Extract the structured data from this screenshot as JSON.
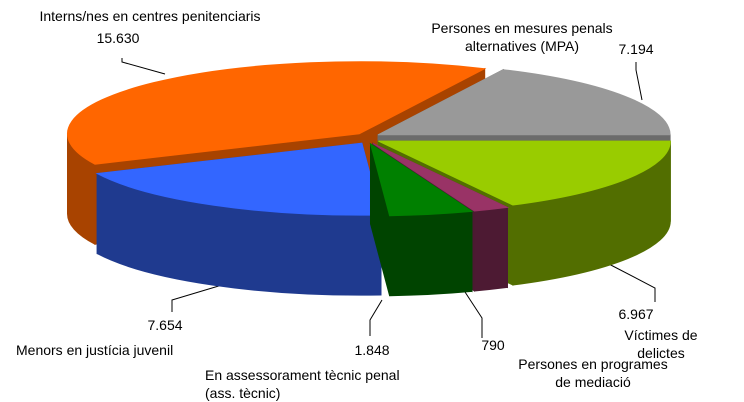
{
  "chart_data": {
    "type": "pie3d",
    "categories": [
      "Interns/nes en centres penitenciaris",
      "Persones en mesures penals alternatives (MPA)",
      "Víctimes de delictes",
      "Persones en programes de mediació",
      "En assessorament tècnic penal\n(ass. tècnic)",
      "Menors en justícia juvenil"
    ],
    "values": [
      15630,
      7194,
      6967,
      790,
      1848,
      7654
    ],
    "value_labels": [
      "15.630",
      "7.194",
      "6.967",
      "790",
      "1.848",
      "7.654"
    ],
    "colors": [
      "#ff6600",
      "#999999",
      "#99cc00",
      "#993366",
      "#008000",
      "#3366ff"
    ],
    "side_colors": [
      "#a84300",
      "#6b6b6b",
      "#526e00",
      "#4d1a33",
      "#004400",
      "#1f3a8f"
    ]
  }
}
